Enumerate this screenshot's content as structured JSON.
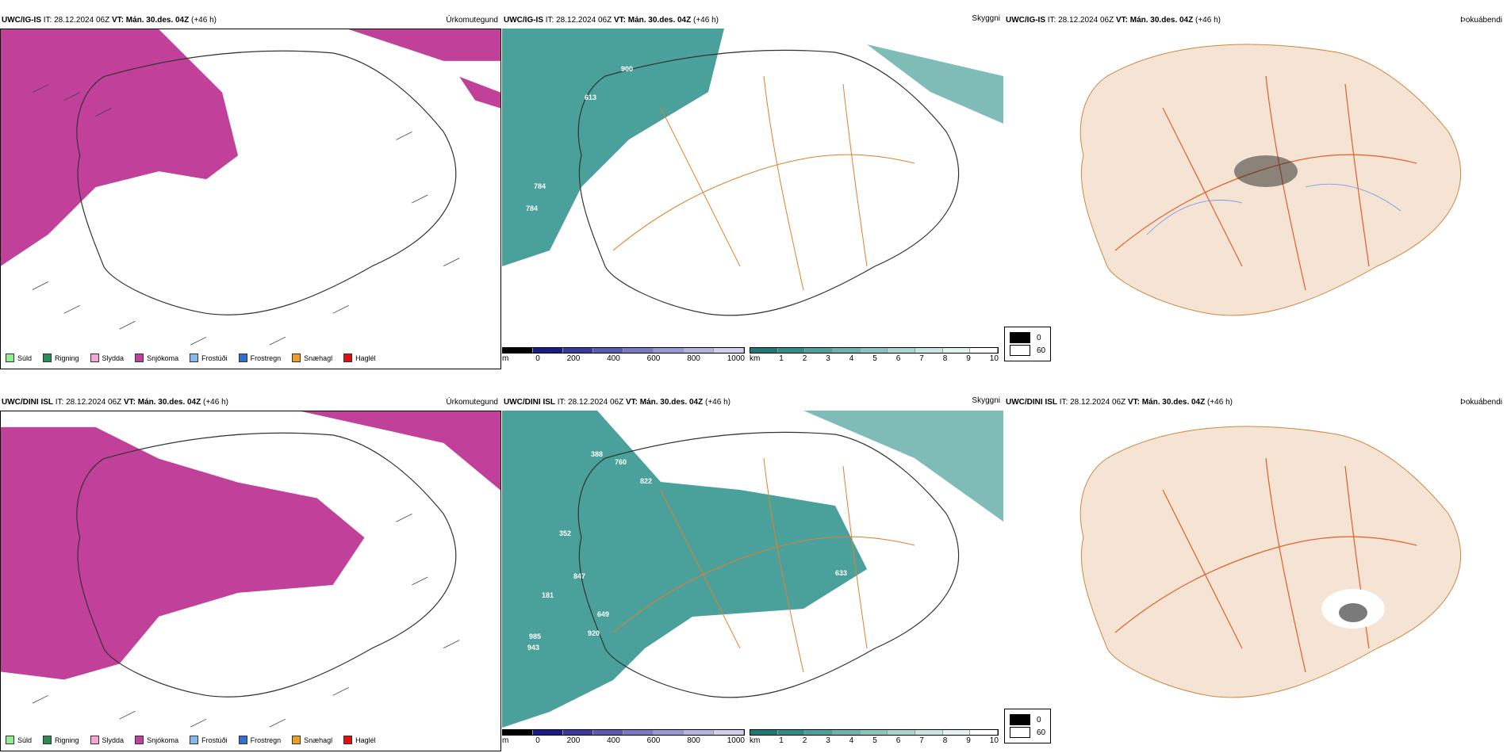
{
  "rows": [
    {
      "model": "UWC/IG-IS",
      "it_label": "IT:",
      "it": "28.12.2024 06Z",
      "vt_label": "VT:",
      "vt": "Mán. 30.des. 04Z",
      "lead": "(+46 h)",
      "panels": {
        "precip": {
          "label": "Úrkomutegund"
        },
        "visibility": {
          "label": "Skyggni",
          "values": [
            "900",
            "613",
            "784",
            "784"
          ]
        },
        "cloud": {
          "label": "Þokuábendi"
        }
      }
    },
    {
      "model": "UWC/DINI ISL",
      "it_label": "IT:",
      "it": "28.12.2024 06Z",
      "vt_label": "VT:",
      "vt": "Mán. 30.des. 04Z",
      "lead": "(+46 h)",
      "panels": {
        "precip": {
          "label": "Úrkomutegund"
        },
        "visibility": {
          "label": "Skyggni",
          "values": [
            "388",
            "760",
            "822",
            "352",
            "847",
            "181",
            "649",
            "985",
            "943",
            "920",
            "633"
          ]
        },
        "cloud": {
          "label": "Þokuábendi"
        }
      }
    }
  ],
  "precip_legend": [
    {
      "label": "Súld",
      "color": "#90ee90"
    },
    {
      "label": "Rigning",
      "color": "#2e8b57"
    },
    {
      "label": "Slydda",
      "color": "#f4a6d7"
    },
    {
      "label": "Snjókoma",
      "color": "#c0409a"
    },
    {
      "label": "Frostúði",
      "color": "#87b8f0"
    },
    {
      "label": "Frostregn",
      "color": "#2f6fcf"
    },
    {
      "label": "Snæhagl",
      "color": "#f0a020"
    },
    {
      "label": "Haglél",
      "color": "#e01010"
    }
  ],
  "height_bar": {
    "unit": "m",
    "ticks": [
      "0",
      "200",
      "400",
      "600",
      "800",
      "1000"
    ]
  },
  "vis_bar": {
    "unit": "km",
    "ticks": [
      "1",
      "2",
      "3",
      "4",
      "5",
      "6",
      "7",
      "8",
      "9",
      "10"
    ]
  },
  "fog_legend": {
    "top": "0",
    "bottom": "60"
  },
  "colors": {
    "snow": "#c0409a",
    "vis": "#2a8f88",
    "land": "#f5e3d3",
    "road": "#e0602a",
    "river": "#6f8ff0"
  }
}
